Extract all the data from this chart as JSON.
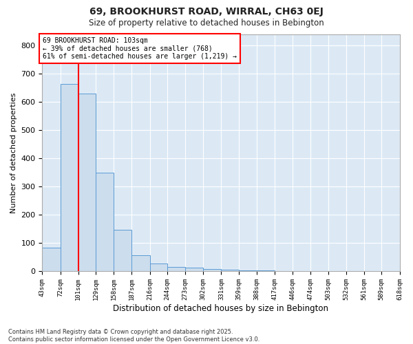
{
  "title1": "69, BROOKHURST ROAD, WIRRAL, CH63 0EJ",
  "title2": "Size of property relative to detached houses in Bebington",
  "xlabel": "Distribution of detached houses by size in Bebington",
  "ylabel": "Number of detached properties",
  "annotation_line1": "69 BROOKHURST ROAD: 103sqm",
  "annotation_line2": "← 39% of detached houses are smaller (768)",
  "annotation_line3": "61% of semi-detached houses are larger (1,219) →",
  "bins": [
    43,
    72,
    101,
    129,
    158,
    187,
    216,
    244,
    273,
    302,
    331,
    359,
    388,
    417,
    446,
    474,
    503,
    532,
    561,
    589,
    618
  ],
  "bar_heights": [
    85,
    665,
    630,
    350,
    148,
    58,
    27,
    17,
    14,
    8,
    5,
    4,
    3,
    2,
    2,
    1,
    1,
    1,
    1,
    1
  ],
  "bar_color": "#ccdded",
  "bar_edge_color": "#5b9bd5",
  "red_line_x": 101,
  "background_color": "#ffffff",
  "plot_bg_color": "#dce9f5",
  "grid_color": "#ffffff",
  "footer_line1": "Contains HM Land Registry data © Crown copyright and database right 2025.",
  "footer_line2": "Contains public sector information licensed under the Open Government Licence v3.0.",
  "ylim": [
    0,
    840
  ],
  "yticks": [
    0,
    100,
    200,
    300,
    400,
    500,
    600,
    700,
    800
  ]
}
